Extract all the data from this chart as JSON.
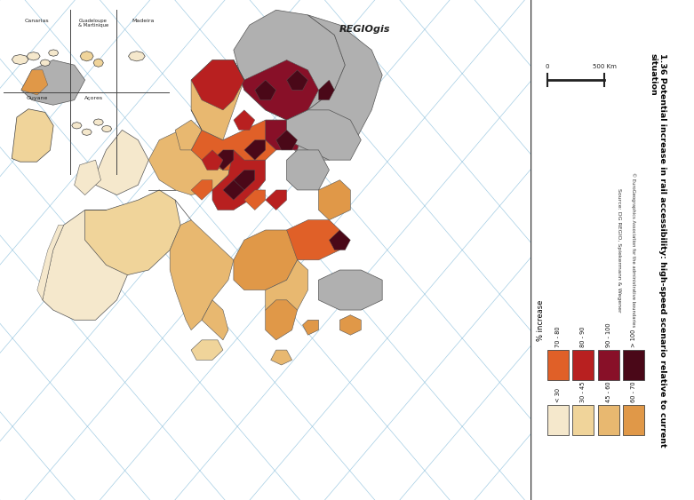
{
  "title_line1": "1.36 Potential increase in rail accessibility: high-speed scenario relative to current",
  "title_line2": "situation",
  "legend_title": "% increase",
  "legend_low_labels": [
    "< 30",
    "30 - 45",
    "45 - 60",
    "60 - 70"
  ],
  "legend_high_labels": [
    "70 - 80",
    "80 - 90",
    "90 - 100",
    "> 100"
  ],
  "legend_low_colors": [
    "#F5E8CC",
    "#F0D49A",
    "#E8B870",
    "#E09848"
  ],
  "legend_high_colors": [
    "#E06028",
    "#B82020",
    "#881028",
    "#4A0818"
  ],
  "ocean_color": "#B8D4E8",
  "gray_color": "#B0B0B0",
  "panel_background": "#FFFFFF",
  "border_color": "#555555",
  "source_text": "Source: DG REGIO, Spiekermann & Wegener",
  "copyright_text": "© EuroGeographics Association for the administrative boundaries",
  "scale_label": "500 Km",
  "scale_zero": "0",
  "regiogis_text": "REGIOgis",
  "figure_width": 7.81,
  "figure_height": 5.63,
  "dpi": 100
}
